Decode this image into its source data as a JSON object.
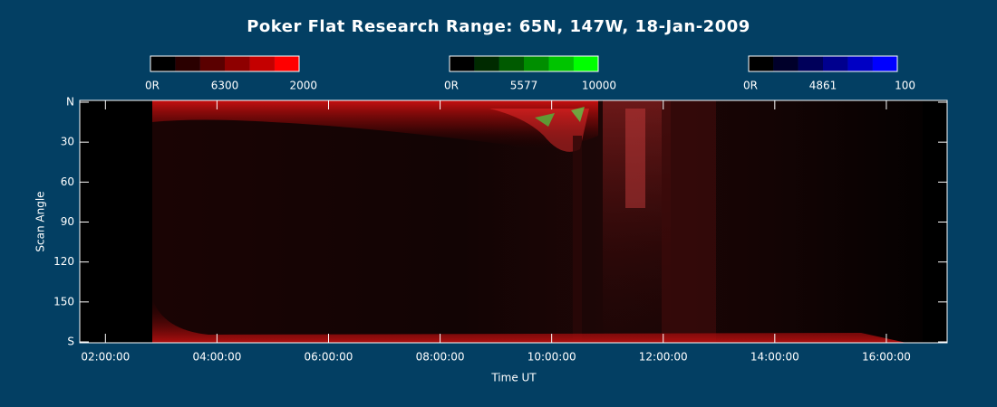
{
  "chart_data": {
    "type": "keogram",
    "title": "Poker Flat Research Range: 65N, 147W, 18-Jan-2009",
    "x_label": "Time UT",
    "y_label": "Scan Angle",
    "xlim": [
      1.54,
      17.09
    ],
    "xticks": [
      {
        "value": 2,
        "label": "02:00:00"
      },
      {
        "value": 4,
        "label": "04:00:00"
      },
      {
        "value": 6,
        "label": "06:00:00"
      },
      {
        "value": 8,
        "label": "08:00:00"
      },
      {
        "value": 10,
        "label": "10:00:00"
      },
      {
        "value": 12,
        "label": "12:00:00"
      },
      {
        "value": 14,
        "label": "14:00:00"
      },
      {
        "value": 16,
        "label": "16:00:00"
      }
    ],
    "ylim": [
      0,
      180
    ],
    "yticks": [
      {
        "value": 0,
        "label": "N"
      },
      30,
      60,
      90,
      120,
      150,
      {
        "value": 180,
        "label": "S"
      }
    ],
    "colorbars": [
      {
        "min_label": "0R",
        "name": "6300",
        "max_label": "2000",
        "colors": [
          "#000000",
          "#2a0000",
          "#5a0000",
          "#8e0000",
          "#c40000",
          "#ff0000"
        ]
      },
      {
        "min_label": "0R",
        "name": "5577",
        "max_label": "10000",
        "colors": [
          "#000000",
          "#002a00",
          "#005a00",
          "#008e00",
          "#00c400",
          "#00ff00"
        ]
      },
      {
        "min_label": "0R",
        "name": "4861",
        "max_label": "100",
        "colors": [
          "#000000",
          "#00002a",
          "#00005a",
          "#00008e",
          "#0000c4",
          "#0000ff"
        ]
      }
    ]
  }
}
